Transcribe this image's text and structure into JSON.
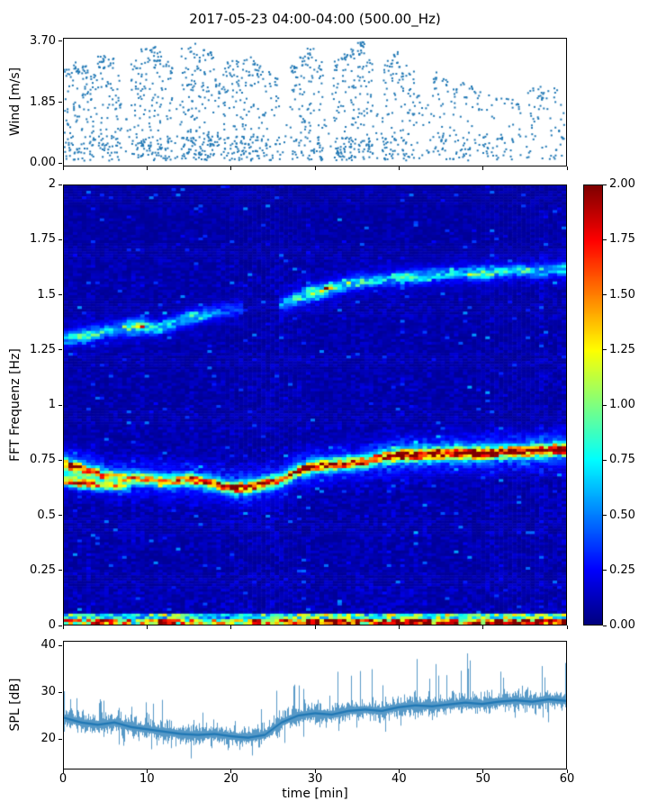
{
  "figure": {
    "title": "2017-05-23 04:00-04:00 (500.00_Hz)"
  },
  "colors": {
    "scatter": "#1f77b4",
    "line": "#1f77b4",
    "spine": "#000000",
    "background": "#ffffff"
  },
  "xaxis": {
    "label": "time [min]",
    "xlim": [
      0,
      60
    ],
    "ticks": [
      "0",
      "10",
      "20",
      "30",
      "40",
      "50",
      "60"
    ],
    "tick_values": [
      0,
      10,
      20,
      30,
      40,
      50,
      60
    ]
  },
  "chart_data": [
    {
      "type": "scatter",
      "name": "wind-speed",
      "ylabel": "Wind [m/s]",
      "ylim": [
        -0.1,
        3.8
      ],
      "yticks": [
        "3.70",
        "1.85",
        "0.00"
      ],
      "ytick_values": [
        3.7,
        1.85,
        0.0
      ],
      "per_minute": {
        "count": [
          36,
          40,
          38,
          34,
          40,
          36,
          30,
          6,
          34,
          42,
          45,
          40,
          36,
          7,
          46,
          48,
          44,
          42,
          24,
          36,
          40,
          38,
          36,
          34,
          22,
          20,
          4,
          32,
          36,
          38,
          34,
          5,
          36,
          40,
          45,
          48,
          40,
          6,
          34,
          36,
          30,
          28,
          12,
          8,
          22,
          24,
          20,
          16,
          18,
          14,
          16,
          14,
          12,
          12,
          10,
          14,
          16,
          14,
          16,
          12
        ],
        "max": [
          2.9,
          3.1,
          3.0,
          2.8,
          3.3,
          3.2,
          2.7,
          1.5,
          3.2,
          3.5,
          3.6,
          3.4,
          3.1,
          1.8,
          3.6,
          3.65,
          3.5,
          3.4,
          2.6,
          3.1,
          3.3,
          3.2,
          3.3,
          3.0,
          2.8,
          2.6,
          1.2,
          3.0,
          3.3,
          3.5,
          3.2,
          1.4,
          3.2,
          3.4,
          3.6,
          3.7,
          3.3,
          1.6,
          3.2,
          3.4,
          3.0,
          2.8,
          2.2,
          1.8,
          2.8,
          2.6,
          2.4,
          2.5,
          2.4,
          2.2,
          2.3,
          2.1,
          2.0,
          2.0,
          1.8,
          2.2,
          2.4,
          2.2,
          2.3,
          2.0
        ]
      }
    },
    {
      "type": "heatmap",
      "name": "fft-spectrogram",
      "ylabel": "FFT Frequenz [Hz]",
      "ylim": [
        0,
        2
      ],
      "yticks": [
        "2",
        "1.75",
        "1.5",
        "1.25",
        "1",
        "0.75",
        "0.5",
        "0.25",
        "0"
      ],
      "ytick_values": [
        2,
        1.75,
        1.5,
        1.25,
        1,
        0.75,
        0.5,
        0.25,
        0
      ],
      "colormap": {
        "name": "jet",
        "min": 0.0,
        "max": 2.0
      },
      "colorbar": {
        "ticks": [
          "2.00",
          "1.75",
          "1.50",
          "1.25",
          "1.00",
          "0.75",
          "0.50",
          "0.25",
          "0.00"
        ],
        "tick_values": [
          2,
          1.75,
          1.5,
          1.25,
          1,
          0.75,
          0.5,
          0.25,
          0
        ]
      },
      "background": {
        "base": 0.045,
        "noise": 0.13
      },
      "bright_columns": {
        "t": [
          38.5,
          40,
          57
        ],
        "boost": 1.3
      },
      "dc_band": {
        "t": [
          0,
          5,
          8,
          12,
          16,
          20,
          24,
          28,
          32,
          36,
          40,
          44,
          48,
          52,
          56,
          60
        ],
        "a": [
          1.2,
          1.4,
          0.8,
          1.5,
          1.0,
          0.9,
          1.2,
          1.5,
          1.6,
          1.3,
          1.5,
          1.7,
          1.4,
          1.6,
          1.5,
          1.6
        ],
        "height": 0.05
      },
      "ridges": [
        {
          "name": "main-swell",
          "t": [
            0,
            3,
            6,
            9,
            12,
            15,
            18,
            20,
            22,
            24,
            26,
            28,
            30,
            33,
            36,
            38,
            40,
            43,
            46,
            50,
            53,
            56,
            60
          ],
          "f": [
            0.73,
            0.7,
            0.67,
            0.665,
            0.655,
            0.66,
            0.64,
            0.62,
            0.625,
            0.64,
            0.66,
            0.7,
            0.72,
            0.73,
            0.74,
            0.76,
            0.77,
            0.775,
            0.78,
            0.78,
            0.785,
            0.79,
            0.8
          ],
          "a": [
            1.5,
            1.2,
            1.0,
            1.1,
            1.2,
            1.3,
            1.2,
            1.4,
            1.5,
            1.3,
            1.2,
            1.4,
            1.5,
            1.4,
            1.3,
            1.6,
            1.8,
            1.6,
            1.7,
            1.8,
            1.6,
            1.7,
            1.8
          ],
          "sigma": 0.016,
          "halo_sigma": 0.05,
          "halo_amp": 0.32
        },
        {
          "name": "main-lower-branch",
          "t": [
            0,
            2,
            4,
            6,
            8
          ],
          "f": [
            0.655,
            0.645,
            0.635,
            0.63,
            0.625
          ],
          "a": [
            1.2,
            1.3,
            1.0,
            0.8,
            0.5
          ],
          "sigma": 0.014,
          "halo_sigma": 0.03,
          "halo_amp": 0.25
        },
        {
          "name": "secondary-early",
          "t": [
            0,
            3,
            6,
            9,
            11,
            13,
            15,
            18,
            21
          ],
          "f": [
            1.3,
            1.32,
            1.34,
            1.36,
            1.35,
            1.37,
            1.4,
            1.42,
            1.44
          ],
          "a": [
            0.55,
            0.7,
            0.5,
            0.85,
            0.6,
            0.45,
            0.6,
            0.35,
            0.25
          ],
          "sigma": 0.02,
          "halo_sigma": 0.045,
          "halo_amp": 0.2
        },
        {
          "name": "secondary-late",
          "t": [
            26,
            29,
            31,
            33,
            35,
            38,
            41,
            44,
            47,
            50,
            53,
            56,
            60
          ],
          "f": [
            1.46,
            1.5,
            1.52,
            1.54,
            1.56,
            1.57,
            1.58,
            1.59,
            1.6,
            1.6,
            1.61,
            1.61,
            1.62
          ],
          "a": [
            0.4,
            0.8,
            1.0,
            0.7,
            0.55,
            0.5,
            0.65,
            0.55,
            0.5,
            0.75,
            0.55,
            0.5,
            0.6
          ],
          "sigma": 0.018,
          "halo_sigma": 0.045,
          "halo_amp": 0.22
        }
      ]
    },
    {
      "type": "line",
      "name": "sound-pressure-level",
      "ylabel": "SPL [dB]",
      "ylim": [
        13.5,
        41
      ],
      "yticks": [
        "40",
        "30",
        "20"
      ],
      "ytick_values": [
        40,
        30,
        20
      ],
      "mean_t": [
        0,
        2,
        4,
        6,
        8,
        10,
        12,
        14,
        16,
        18,
        20,
        22,
        24,
        26,
        28,
        30,
        32,
        34,
        36,
        38,
        40,
        42,
        44,
        46,
        48,
        50,
        52,
        54,
        56,
        58,
        60
      ],
      "mean": [
        24.5,
        23.5,
        23,
        23.5,
        22.5,
        22,
        21.5,
        21,
        20.8,
        21,
        20.5,
        20.2,
        20.8,
        23.5,
        25,
        25.5,
        25.2,
        26,
        26.3,
        26,
        26.8,
        27.2,
        27,
        27.4,
        27.8,
        27.5,
        28,
        28.3,
        28,
        28.5,
        28.2
      ]
    }
  ]
}
